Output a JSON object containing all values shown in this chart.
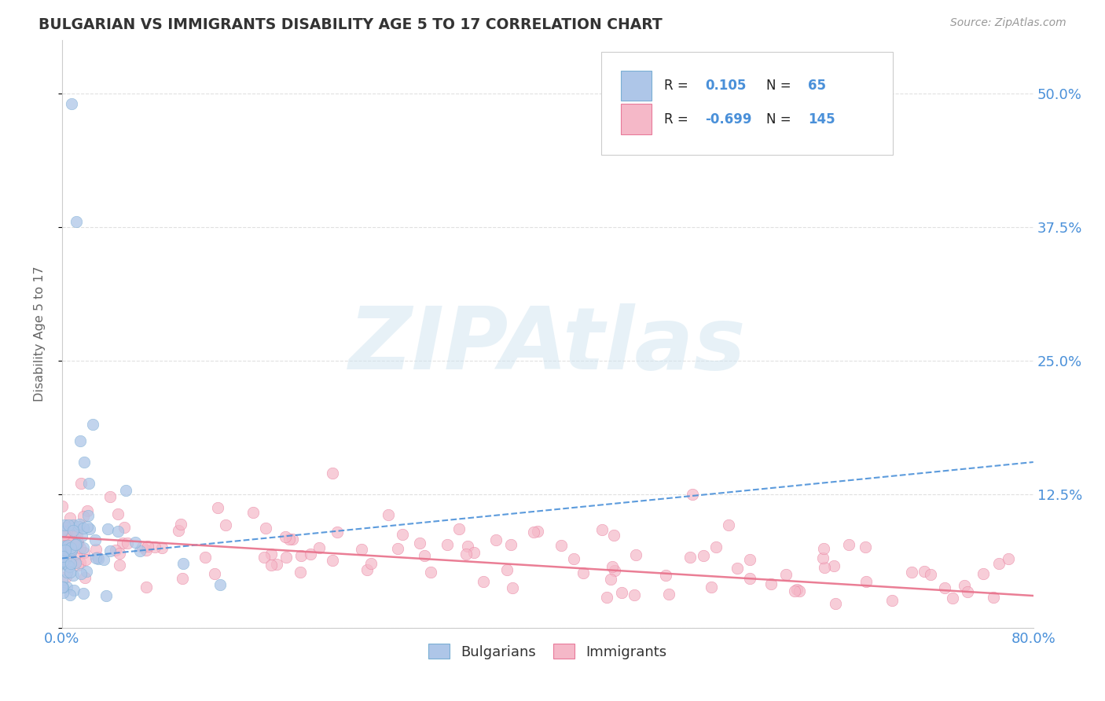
{
  "title": "BULGARIAN VS IMMIGRANTS DISABILITY AGE 5 TO 17 CORRELATION CHART",
  "source_text": "Source: ZipAtlas.com",
  "ylabel": "Disability Age 5 to 17",
  "xlim": [
    0.0,
    0.8
  ],
  "ylim": [
    0.0,
    0.55
  ],
  "yticks": [
    0.0,
    0.125,
    0.25,
    0.375,
    0.5
  ],
  "ytick_labels": [
    "",
    "12.5%",
    "25.0%",
    "37.5%",
    "50.0%"
  ],
  "xticks": [
    0.0,
    0.1,
    0.2,
    0.3,
    0.4,
    0.5,
    0.6,
    0.7,
    0.8
  ],
  "xtick_labels": [
    "0.0%",
    "",
    "",
    "",
    "",
    "",
    "",
    "",
    "80.0%"
  ],
  "bulgarian_R": 0.105,
  "bulgarian_N": 65,
  "immigrant_R": -0.699,
  "immigrant_N": 145,
  "bulgarian_color": "#aec6e8",
  "immigrant_color": "#f5b8c8",
  "bulgarian_scatter_edge": "#7aafd4",
  "immigrant_scatter_edge": "#e87a9a",
  "bulgarian_line_color": "#4a90d9",
  "immigrant_line_color": "#e8708a",
  "watermark": "ZIPAtlas",
  "watermark_color": "#c8d8e8",
  "title_color": "#333333",
  "axis_label_color": "#666666",
  "tick_label_color": "#4a90d9",
  "grid_color": "#dddddd",
  "background_color": "#ffffff",
  "bulg_trend_x": [
    0.0,
    0.8
  ],
  "bulg_trend_y": [
    0.065,
    0.155
  ],
  "imm_trend_x": [
    0.0,
    0.8
  ],
  "imm_trend_y": [
    0.085,
    0.03
  ]
}
